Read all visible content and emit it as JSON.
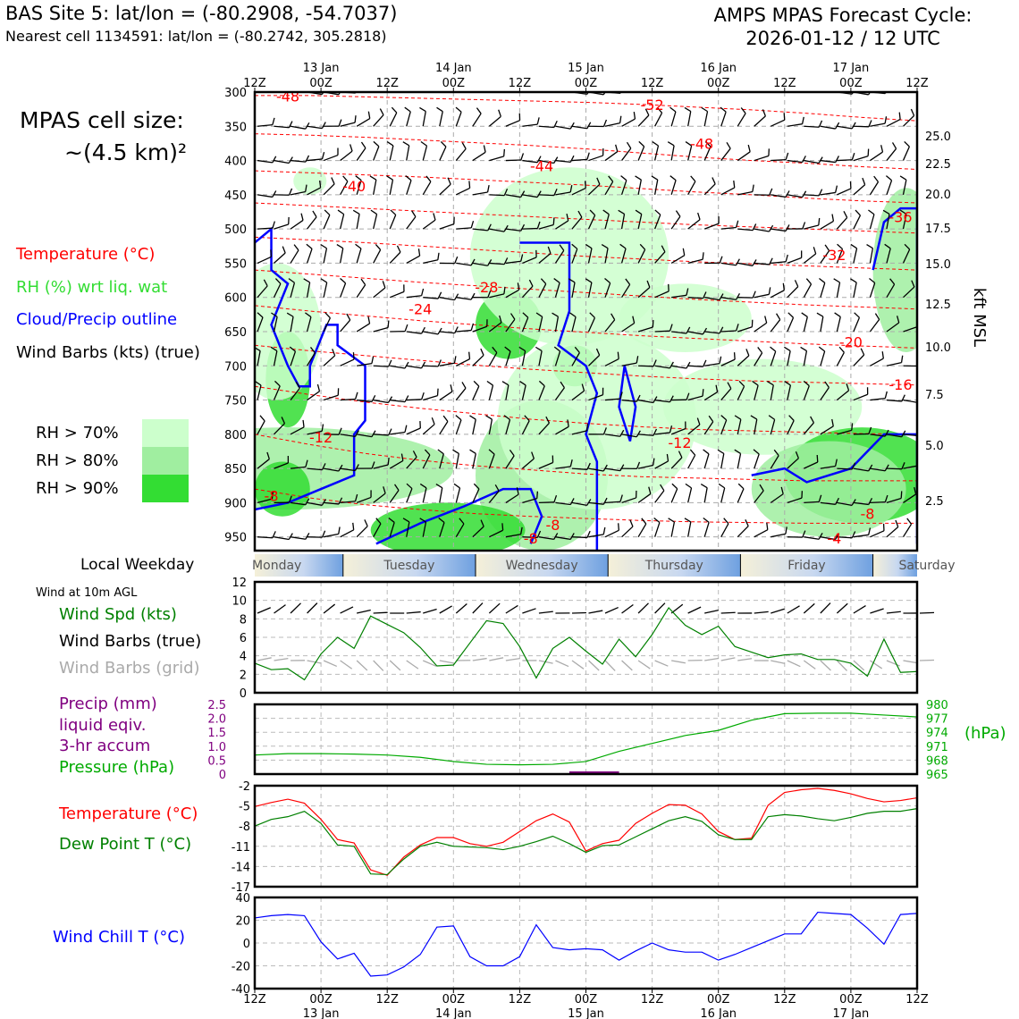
{
  "header": {
    "site_line": "BAS Site 5: lat/lon = (-80.2908, -54.7037)",
    "cell_line": "Nearest cell 1134591: lat/lon = (-80.2742, 305.2818)",
    "forecast_title": "AMPS MPAS Forecast Cycle:",
    "forecast_cycle": "2026-01-12 / 12 UTC"
  },
  "left_panel": {
    "cell_size_label": "MPAS cell size:",
    "cell_size_value": "~(4.5 km)²",
    "legend": [
      {
        "text": "Temperature (°C)",
        "color": "#ff0000"
      },
      {
        "text": "RH (%) wrt liq. wat",
        "color": "#33dd33"
      },
      {
        "text": "Cloud/Precip outline",
        "color": "#0000ff"
      },
      {
        "text": "Wind Barbs (kts) (true)",
        "color": "#000000"
      }
    ],
    "rh_legend": [
      {
        "text": "RH > 70%",
        "color": "#ccffcc"
      },
      {
        "text": "RH > 80%",
        "color": "#a0eea0"
      },
      {
        "text": "RH > 90%",
        "color": "#33dd33"
      }
    ],
    "weekday_label": "Local Weekday",
    "wind10_title": "Wind at 10m AGL",
    "wind_labels": [
      {
        "text": "Wind Spd (kts)",
        "color": "#008000"
      },
      {
        "text": "Wind Barbs (true)",
        "color": "#000000"
      },
      {
        "text": "Wind Barbs (grid)",
        "color": "#aaaaaa"
      }
    ],
    "precip_labels": [
      {
        "text": "Precip (mm)",
        "color": "#800080"
      },
      {
        "text": "liquid eqiv.",
        "color": "#800080"
      },
      {
        "text": "3-hr accum",
        "color": "#800080"
      },
      {
        "text": "Pressure (hPa)",
        "color": "#00aa00"
      }
    ],
    "temp_labels": [
      {
        "text": "Temperature (°C)",
        "color": "#ff0000"
      },
      {
        "text": "Dew Point T (°C)",
        "color": "#008000"
      }
    ],
    "windchill_label": {
      "text": "Wind Chill T (°C)",
      "color": "#0000ff"
    }
  },
  "time_axis": {
    "ticks": [
      "12Z",
      "00Z",
      "12Z",
      "00Z",
      "12Z",
      "00Z",
      "12Z",
      "00Z",
      "12Z",
      "00Z",
      "12Z"
    ],
    "dates": [
      "13 Jan",
      "14 Jan",
      "15 Jan",
      "16 Jan",
      "17 Jan"
    ],
    "weekdays": [
      "Monday",
      "Tuesday",
      "Wednesday",
      "Thursday",
      "Friday",
      "Saturday"
    ]
  },
  "chart_data": [
    {
      "type": "heatmap",
      "name": "cross-section",
      "y_pressure_ticks": [
        300,
        350,
        400,
        450,
        500,
        550,
        600,
        650,
        700,
        750,
        800,
        850,
        900,
        950
      ],
      "y_kft_ticks": [
        "25.0",
        "22.5",
        "20.0",
        "17.5",
        "15.0",
        "12.5",
        "10.0",
        "7.5",
        "5.0",
        "2.5"
      ],
      "right_axis_label": "kft MSL",
      "ylim_hpa": [
        300,
        970
      ],
      "xlim_hours": [
        0,
        120
      ],
      "temperature_labels": [
        {
          "text": "-48",
          "h": 6,
          "p": 306
        },
        {
          "text": "-52",
          "h": 72,
          "p": 318
        },
        {
          "text": "-48",
          "h": 81,
          "p": 375
        },
        {
          "text": "-44",
          "h": 52,
          "p": 408
        },
        {
          "text": "-40",
          "h": 18,
          "p": 437
        },
        {
          "text": "-36",
          "h": 117,
          "p": 482
        },
        {
          "text": "-32",
          "h": 105,
          "p": 538
        },
        {
          "text": "-28",
          "h": 42,
          "p": 585
        },
        {
          "text": "-24",
          "h": 30,
          "p": 617
        },
        {
          "text": "-20",
          "h": 108,
          "p": 665
        },
        {
          "text": "-16",
          "h": 117,
          "p": 727
        },
        {
          "text": "-12",
          "h": 12,
          "p": 804
        },
        {
          "text": "-12",
          "h": 77,
          "p": 812
        },
        {
          "text": "-8",
          "h": 3,
          "p": 890
        },
        {
          "text": "-8",
          "h": 54,
          "p": 932
        },
        {
          "text": "-8",
          "h": 111,
          "p": 916
        },
        {
          "text": "-8",
          "h": 50,
          "p": 952
        },
        {
          "text": "-4",
          "h": 105,
          "p": 952
        }
      ],
      "isotherms_hpa": [
        {
          "t": -52,
          "p": [
            290,
            291,
            292,
            292,
            293,
            294,
            295,
            296,
            297,
            297,
            298,
            298,
            298
          ]
        },
        {
          "t": -48,
          "p": [
            305,
            305,
            307,
            309,
            311,
            313,
            315,
            318,
            322,
            326,
            331,
            337,
            342
          ]
        },
        {
          "t": -44,
          "p": [
            361,
            363,
            366,
            370,
            374,
            378,
            383,
            389,
            395,
            400,
            404,
            409,
            413
          ]
        },
        {
          "t": -40,
          "p": [
            415,
            418,
            421,
            424,
            428,
            432,
            436,
            441,
            446,
            450,
            455,
            459,
            462
          ]
        },
        {
          "t": -36,
          "p": [
            462,
            466,
            470,
            474,
            478,
            482,
            486,
            490,
            494,
            497,
            500,
            503,
            506
          ]
        },
        {
          "t": -32,
          "p": [
            512,
            516,
            520,
            525,
            530,
            535,
            540,
            544,
            548,
            551,
            554,
            557,
            560
          ]
        },
        {
          "t": -28,
          "p": [
            560,
            566,
            572,
            578,
            583,
            588,
            593,
            598,
            603,
            607,
            611,
            614,
            617
          ]
        },
        {
          "t": -24,
          "p": [
            612,
            620,
            627,
            634,
            640,
            646,
            651,
            656,
            660,
            664,
            668,
            671,
            674
          ]
        },
        {
          "t": -20,
          "p": [
            670,
            678,
            685,
            692,
            699,
            705,
            710,
            715,
            719,
            722,
            724,
            726,
            728
          ]
        },
        {
          "t": -16,
          "p": [
            730,
            742,
            753,
            762,
            770,
            778,
            784,
            789,
            793,
            795,
            797,
            799,
            800
          ]
        },
        {
          "t": -12,
          "p": [
            800,
            815,
            828,
            838,
            846,
            852,
            858,
            862,
            864,
            866,
            868,
            868,
            868
          ]
        },
        {
          "t": -8,
          "p": [
            880,
            893,
            903,
            910,
            916,
            920,
            923,
            926,
            928,
            929,
            930,
            930,
            930
          ]
        }
      ],
      "wind_field": {
        "levels_hpa": [
          300,
          350,
          400,
          450,
          500,
          550,
          600,
          650,
          700,
          750,
          800,
          850,
          900,
          950
        ],
        "hours_step": 3
      }
    },
    {
      "type": "line",
      "name": "wind-10m",
      "ylim": [
        0,
        12
      ],
      "yticks": [
        0,
        2,
        4,
        6,
        8,
        10,
        12
      ],
      "series": [
        {
          "name": "Wind Spd (kts)",
          "color": "#008000",
          "x": [
            0,
            3,
            6,
            9,
            12,
            15,
            18,
            21,
            24,
            27,
            30,
            33,
            36,
            39,
            42,
            45,
            48,
            51,
            54,
            57,
            60,
            63,
            66,
            69,
            72,
            75,
            78,
            81,
            84,
            87,
            90,
            93,
            96,
            99,
            102,
            105,
            108,
            111,
            114,
            117,
            120
          ],
          "values": [
            3.2,
            2.5,
            2.6,
            1.4,
            4.2,
            6.0,
            4.8,
            8.3,
            7.4,
            6.5,
            4.9,
            2.9,
            3.0,
            5.4,
            7.8,
            7.5,
            5.0,
            1.6,
            4.8,
            6.0,
            4.5,
            3.1,
            5.8,
            3.9,
            6.3,
            9.2,
            7.3,
            6.3,
            7.2,
            5.0,
            4.4,
            3.8,
            4.1,
            4.2,
            3.6,
            3.6,
            3.2,
            1.8,
            5.8,
            2.2,
            2.3
          ]
        }
      ],
      "barb_rows": [
        {
          "name": "true",
          "color": "#000000"
        },
        {
          "name": "grid",
          "color": "#aaaaaa"
        }
      ]
    },
    {
      "type": "line",
      "name": "precip-pressure",
      "ylim_precip": [
        0,
        2.5
      ],
      "yticks_precip": [
        "0",
        "0.5",
        "1.0",
        "1.5",
        "2.0",
        "2.5"
      ],
      "ylim_pressure": [
        965,
        980
      ],
      "yticks_pressure": [
        "965",
        "968",
        "971",
        "974",
        "977",
        "980"
      ],
      "pressure_unit": "(hPa)",
      "series": [
        {
          "name": "Pressure (hPa)",
          "color": "#00aa00",
          "x": [
            0,
            6,
            12,
            18,
            24,
            30,
            36,
            42,
            48,
            54,
            60,
            66,
            72,
            78,
            84,
            90,
            96,
            102,
            108,
            114,
            120
          ],
          "values": [
            969.1,
            969.4,
            969.4,
            969.3,
            969.1,
            968.6,
            967.7,
            967.1,
            967.0,
            967.1,
            967.7,
            969.9,
            971.6,
            973.3,
            974.4,
            976.6,
            978.0,
            978.1,
            978.1,
            977.7,
            977.3
          ]
        },
        {
          "name": "Precip (mm)",
          "color": "#800080",
          "x": [
            57,
            60,
            63,
            66
          ],
          "values": [
            0,
            0.05,
            0.05,
            0
          ]
        }
      ]
    },
    {
      "type": "line",
      "name": "temperature-dewpoint",
      "ylim": [
        -17,
        -2
      ],
      "yticks": [
        "-2",
        "-5",
        "-8",
        "-11",
        "-14",
        "-17"
      ],
      "series": [
        {
          "name": "Temperature (°C)",
          "color": "#ff0000",
          "x": [
            0,
            3,
            6,
            9,
            12,
            15,
            18,
            21,
            24,
            27,
            30,
            33,
            36,
            39,
            42,
            45,
            48,
            51,
            54,
            57,
            60,
            63,
            66,
            69,
            72,
            75,
            78,
            81,
            84,
            87,
            90,
            93,
            96,
            99,
            102,
            105,
            108,
            111,
            114,
            117,
            120
          ],
          "values": [
            -5.1,
            -4.5,
            -4.0,
            -4.6,
            -7.0,
            -10.0,
            -10.5,
            -14.5,
            -15.3,
            -12.6,
            -10.8,
            -9.7,
            -9.7,
            -10.6,
            -11.0,
            -10.4,
            -8.8,
            -7.2,
            -6.2,
            -7.4,
            -11.7,
            -10.6,
            -10.1,
            -7.6,
            -6.1,
            -4.8,
            -4.9,
            -6.2,
            -8.8,
            -10.0,
            -9.8,
            -4.9,
            -3.0,
            -2.6,
            -2.4,
            -2.7,
            -3.2,
            -3.9,
            -4.4,
            -4.2,
            -3.8
          ]
        },
        {
          "name": "Dew Point T (°C)",
          "color": "#008000",
          "x": [
            0,
            3,
            6,
            9,
            12,
            15,
            18,
            21,
            24,
            27,
            30,
            33,
            36,
            39,
            42,
            45,
            48,
            51,
            54,
            57,
            60,
            63,
            66,
            69,
            72,
            75,
            78,
            81,
            84,
            87,
            90,
            93,
            96,
            99,
            102,
            105,
            108,
            111,
            114,
            117,
            120
          ],
          "values": [
            -8.0,
            -7.0,
            -6.6,
            -5.8,
            -7.6,
            -10.8,
            -11.0,
            -15.1,
            -15.2,
            -12.9,
            -11.0,
            -10.4,
            -11.0,
            -11.1,
            -11.2,
            -11.5,
            -11.0,
            -10.3,
            -9.5,
            -10.6,
            -11.9,
            -10.9,
            -10.8,
            -9.6,
            -8.4,
            -7.2,
            -6.6,
            -7.3,
            -9.3,
            -10.0,
            -10.0,
            -6.6,
            -6.3,
            -6.5,
            -6.9,
            -7.2,
            -6.7,
            -6.1,
            -5.8,
            -5.8,
            -5.4
          ]
        }
      ]
    },
    {
      "type": "line",
      "name": "wind-chill",
      "ylim": [
        -40,
        40
      ],
      "yticks": [
        "40",
        "20",
        "0",
        "-20",
        "-40"
      ],
      "series": [
        {
          "name": "Wind Chill T (°C)",
          "color": "#0000ff",
          "x": [
            0,
            3,
            6,
            9,
            12,
            15,
            18,
            21,
            24,
            27,
            30,
            33,
            36,
            39,
            42,
            45,
            48,
            51,
            54,
            57,
            60,
            63,
            66,
            69,
            72,
            75,
            78,
            81,
            84,
            87,
            90,
            93,
            96,
            99,
            102,
            105,
            108,
            111,
            114,
            117,
            120
          ],
          "values": [
            22,
            24,
            25,
            24,
            1,
            -14,
            -9,
            -29,
            -28,
            -21,
            -10,
            14,
            15,
            -12,
            -20,
            -20,
            -12,
            16,
            -4,
            -6,
            -5,
            -6,
            -15,
            -7,
            0,
            -6,
            -8,
            -8,
            -15,
            -10,
            -4,
            2,
            8,
            8,
            27,
            26,
            25,
            13,
            -1,
            25,
            26
          ]
        }
      ]
    }
  ]
}
